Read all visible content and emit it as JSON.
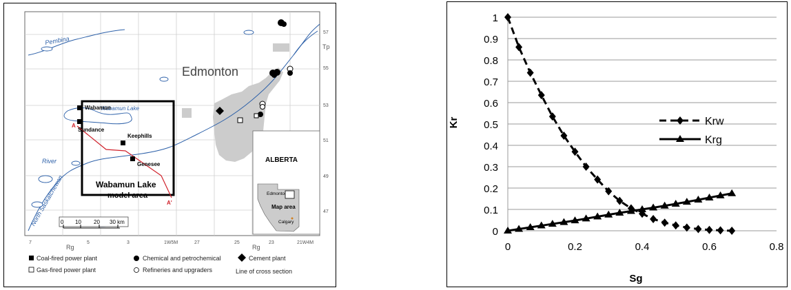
{
  "map": {
    "river_labels": [
      "Pembina",
      "Wabamun Lake",
      "River",
      "North Saskatchewan"
    ],
    "city_label": "Edmonton",
    "plants": [
      "Wabamun",
      "Sundance",
      "Keephills",
      "Genesee"
    ],
    "box_title": "Wabamun Lake",
    "box_subtitle": "model area",
    "cross_section_labels": [
      "A",
      "A'"
    ],
    "inset": {
      "title": "ALBERTA",
      "edmonton": "Edmonton",
      "map_area": "Map area",
      "calgary": "Calgary"
    },
    "scale": {
      "ticks": [
        "0",
        "10",
        "20",
        "30 km"
      ]
    },
    "tp_label": "Tp",
    "tp_values": [
      "57",
      "55",
      "53",
      "51",
      "49",
      "47"
    ],
    "rg_label": "Rg",
    "range_labels": [
      "7",
      "5",
      "3",
      "1W5M",
      "27",
      "25",
      "23",
      "21W4M"
    ],
    "legend": {
      "coal": "Coal-fired power plant",
      "chemical": "Chemical and petrochemical",
      "cement": "Cement plant",
      "gas": "Gas-fired power plant",
      "refineries": "Refineries and upgraders",
      "cross_section": "Line of cross section"
    },
    "colors": {
      "water": "#2b5fa8",
      "urban": "#cccccc",
      "section": "#d0202a"
    }
  },
  "chart_data": {
    "type": "line",
    "xlabel": "Sg",
    "ylabel": "Kr",
    "xlim": [
      0,
      0.8
    ],
    "ylim": [
      0,
      1
    ],
    "xticks": [
      "0",
      "0.2",
      "0.4",
      "0.6",
      "0.8"
    ],
    "yticks": [
      "0",
      "0.1",
      "0.2",
      "0.3",
      "0.4",
      "0.5",
      "0.6",
      "0.7",
      "0.8",
      "0.9",
      "1"
    ],
    "grid": "horizontal",
    "legend_position": "right",
    "x": [
      0,
      0.033,
      0.067,
      0.1,
      0.133,
      0.167,
      0.2,
      0.233,
      0.267,
      0.3,
      0.333,
      0.367,
      0.4,
      0.433,
      0.467,
      0.5,
      0.533,
      0.567,
      0.6,
      0.633,
      0.667
    ],
    "series": [
      {
        "name": "Krw",
        "marker": "diamond",
        "line": "dashed",
        "values": [
          1.0,
          0.86,
          0.74,
          0.635,
          0.535,
          0.445,
          0.37,
          0.3,
          0.24,
          0.185,
          0.14,
          0.105,
          0.08,
          0.055,
          0.038,
          0.025,
          0.015,
          0.008,
          0.004,
          0.002,
          0.0
        ]
      },
      {
        "name": "Krg",
        "marker": "triangle",
        "line": "solid",
        "values": [
          0.0,
          0.008,
          0.016,
          0.024,
          0.032,
          0.04,
          0.048,
          0.057,
          0.066,
          0.075,
          0.084,
          0.092,
          0.1,
          0.108,
          0.117,
          0.126,
          0.135,
          0.145,
          0.155,
          0.165,
          0.175
        ]
      }
    ]
  }
}
